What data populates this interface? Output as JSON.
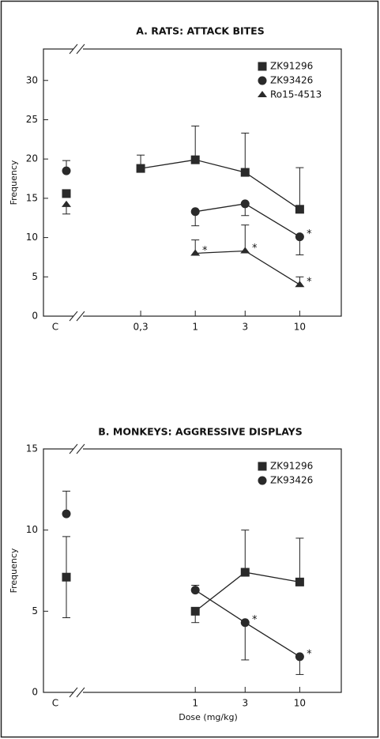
{
  "chart_data": [
    {
      "type": "line",
      "title": "A. RATS: ATTACK BITES",
      "ylabel": "Frequency",
      "control_label": "C",
      "significance_label": "*",
      "xscale": "log",
      "xlim": [
        0.1,
        25
      ],
      "xticks": [
        {
          "value": 0.3,
          "label": "0,3"
        },
        1,
        3,
        10
      ],
      "ylim": [
        0,
        34
      ],
      "yticks": [
        0,
        5,
        10,
        15,
        20,
        25,
        30
      ],
      "legend": "upper right",
      "series": [
        {
          "name": "ZK91296",
          "marker": "square",
          "color": "#2a2a2a",
          "x": [
            0.3,
            1,
            3,
            10
          ],
          "values": [
            18.8,
            19.9,
            18.3,
            13.6
          ],
          "err_up": [
            1.7,
            4.3,
            5.0,
            5.3
          ],
          "err_down": [
            null,
            null,
            null,
            null
          ],
          "significant": [
            false,
            false,
            false,
            false
          ],
          "control": 15.6,
          "control_err_up": null,
          "control_err_down": null
        },
        {
          "name": "ZK93426",
          "marker": "circle",
          "color": "#2a2a2a",
          "x": [
            1,
            3,
            10
          ],
          "values": [
            13.3,
            14.3,
            10.1
          ],
          "err_up": [
            null,
            null,
            null
          ],
          "err_down": [
            1.8,
            1.5,
            2.3
          ],
          "significant": [
            false,
            false,
            true
          ],
          "control": 18.5,
          "control_err_up": 1.3,
          "control_err_down": null
        },
        {
          "name": "Ro15-4513",
          "marker": "triangle",
          "color": "#2a2a2a",
          "x": [
            1,
            3,
            10
          ],
          "values": [
            8.0,
            8.3,
            4.0
          ],
          "err_up": [
            1.7,
            3.3,
            1.0
          ],
          "err_down": [
            null,
            null,
            null
          ],
          "significant": [
            true,
            true,
            true
          ],
          "control": 14.2,
          "control_err_up": null,
          "control_err_down": 1.2
        }
      ]
    },
    {
      "type": "line",
      "title": "B. MONKEYS: AGGRESSIVE DISPLAYS",
      "ylabel": "Frequency",
      "xlabel": "Dose (mg/kg)",
      "control_label": "C",
      "significance_label": "*",
      "xscale": "log",
      "xlim": [
        0.1,
        25
      ],
      "xticks": [
        1,
        3,
        10
      ],
      "ylim": [
        0,
        15
      ],
      "yticks": [
        0,
        5,
        10,
        15
      ],
      "legend": "upper right",
      "series": [
        {
          "name": "ZK91296",
          "marker": "square",
          "color": "#2a2a2a",
          "x": [
            1,
            3,
            10
          ],
          "values": [
            5.0,
            7.4,
            6.8
          ],
          "err_up": [
            null,
            2.6,
            2.7
          ],
          "err_down": [
            0.7,
            null,
            null
          ],
          "significant": [
            false,
            false,
            false
          ],
          "control": 7.1,
          "control_err_up": 2.5,
          "control_err_down": 2.5
        },
        {
          "name": "ZK93426",
          "marker": "circle",
          "color": "#2a2a2a",
          "x": [
            1,
            3,
            10
          ],
          "values": [
            6.3,
            4.3,
            2.2
          ],
          "err_up": [
            0.3,
            null,
            null
          ],
          "err_down": [
            null,
            2.3,
            1.1
          ],
          "significant": [
            false,
            true,
            true
          ],
          "control": 11.0,
          "control_err_up": 1.4,
          "control_err_down": null
        }
      ]
    }
  ]
}
